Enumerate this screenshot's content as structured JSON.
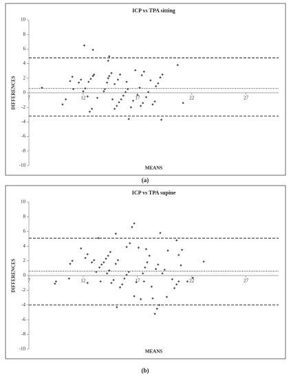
{
  "chart_data": [
    {
      "type": "scatter",
      "title": "ICP vs TPA sitting",
      "x_label": "MEANS",
      "y_label": "DIFFERENCES",
      "caption": "(a)",
      "color": "#505050",
      "xlim": [
        7,
        30
      ],
      "ylim": [
        -10,
        10
      ],
      "xticks": [
        7,
        12,
        17,
        22,
        27
      ],
      "yticks": [
        -10,
        -8,
        -6,
        -4,
        -2,
        0,
        2,
        4,
        6,
        8,
        10
      ],
      "grid": false,
      "lines": [
        {
          "value": 4.8,
          "style": "dashed"
        },
        {
          "value": 0.6,
          "style": "dotted"
        },
        {
          "value": -3.2,
          "style": "dashed"
        }
      ],
      "x": [
        8.2,
        10.1,
        10.4,
        10.8,
        11.0,
        11.1,
        11.6,
        11.8,
        12.1,
        12.0,
        12.2,
        12.4,
        12.6,
        12.8,
        12.5,
        12.7,
        12.9,
        13.0,
        12.9,
        13.3,
        13.9,
        14.0,
        14.2,
        14.3,
        14.4,
        14.6,
        14.3,
        14.4,
        14.7,
        14.9,
        15.1,
        15.3,
        15.5,
        15.7,
        15.9,
        16.1,
        14.9,
        15.2,
        15.4,
        16.0,
        16.2,
        16.4,
        16.6,
        16.8,
        17.0,
        17.2,
        17.4,
        17.6,
        17.3,
        17.5,
        17.8,
        18.0,
        18.2,
        18.4,
        18.6,
        18.7,
        18.9,
        19.1,
        19.3,
        19.2,
        20.7,
        21.2
      ],
      "values": [
        0.7,
        -1.6,
        -0.9,
        1.6,
        2.2,
        0.5,
        1.4,
        1.8,
        6.5,
        0.2,
        0.6,
        -0.5,
        -2.6,
        -2.2,
        1.5,
        1.9,
        2.3,
        2.5,
        5.9,
        -0.7,
        0.2,
        0.5,
        1.4,
        2.0,
        2.3,
        2.7,
        4.4,
        5.0,
        -0.9,
        -2.2,
        -1.8,
        -1.3,
        -0.9,
        -0.4,
        0.1,
        0.5,
        1.2,
        1.8,
        2.5,
        1.5,
        -3.6,
        -2.0,
        -1.1,
        3.1,
        -0.3,
        0.7,
        2.4,
        2.9,
        -1.8,
        -1.4,
        -0.6,
        0.1,
        1.7,
        -1.6,
        -1.2,
        0.9,
        1.3,
        2.1,
        2.5,
        -3.7,
        3.8,
        -1.4
      ]
    },
    {
      "type": "scatter",
      "title": "ICP vs TPA supine",
      "x_label": "MEANS",
      "y_label": "DIFFERENCES",
      "caption": "(b)",
      "color": "#505050",
      "xlim": [
        7,
        30
      ],
      "ylim": [
        -10,
        10
      ],
      "xticks": [
        7,
        12,
        17,
        22,
        27
      ],
      "yticks": [
        -10,
        -8,
        -6,
        -4,
        -2,
        0,
        2,
        4,
        6,
        8,
        10
      ],
      "grid": false,
      "lines": [
        {
          "value": 5.1,
          "style": "dashed"
        },
        {
          "value": 0.6,
          "style": "dotted"
        },
        {
          "value": -4,
          "style": "dashed"
        }
      ],
      "x": [
        9.4,
        9.5,
        10.7,
        10.8,
        11.0,
        11.8,
        12.2,
        12.4,
        12.4,
        12.8,
        13.0,
        13.2,
        13.4,
        13.5,
        13.7,
        13.9,
        14.1,
        14.3,
        14.5,
        13.6,
        14.2,
        14.4,
        14.6,
        14.8,
        15.0,
        15.2,
        15.0,
        15.1,
        15.4,
        15.6,
        15.8,
        16.0,
        16.2,
        16.0,
        16.3,
        16.5,
        16.7,
        16.7,
        16.9,
        17.1,
        17.3,
        17.5,
        17.7,
        17.9,
        18.1,
        17.6,
        17.8,
        18.3,
        18.4,
        18.6,
        18.8,
        19.0,
        18.7,
        18.9,
        19.1,
        19.3,
        19.5,
        19.7,
        19.8,
        20.2,
        20.4,
        20.6,
        20.8,
        20.6,
        20.8,
        21.0,
        21.1,
        21.6,
        22.1,
        23.1
      ],
      "values": [
        -1.1,
        -0.8,
        -0.4,
        1.6,
        2.0,
        3.7,
        2.4,
        2.9,
        -1.0,
        1.8,
        2.1,
        0.5,
        5.1,
        1.1,
        1.5,
        1.8,
        2.3,
        2.7,
        3.2,
        -0.8,
        0.3,
        0.7,
        -1.0,
        -0.6,
        1.6,
        2.1,
        5.7,
        -4.3,
        -1.6,
        -1.2,
        -0.4,
        0.1,
        0.5,
        3.9,
        4.4,
        6.6,
        7.1,
        -2.8,
        -0.9,
        3.8,
        -3.2,
        0.3,
        1.1,
        1.8,
        2.7,
        -0.8,
        3.6,
        -1.5,
        -3.1,
        -5.2,
        -4.5,
        -4.0,
        0.9,
        1.5,
        5.8,
        0.3,
        0.8,
        -2.9,
        3.4,
        -0.5,
        -1.7,
        -1.2,
        -0.8,
        4.8,
        2.8,
        1.4,
        3.5,
        -0.8,
        -0.3,
        1.9
      ]
    }
  ]
}
